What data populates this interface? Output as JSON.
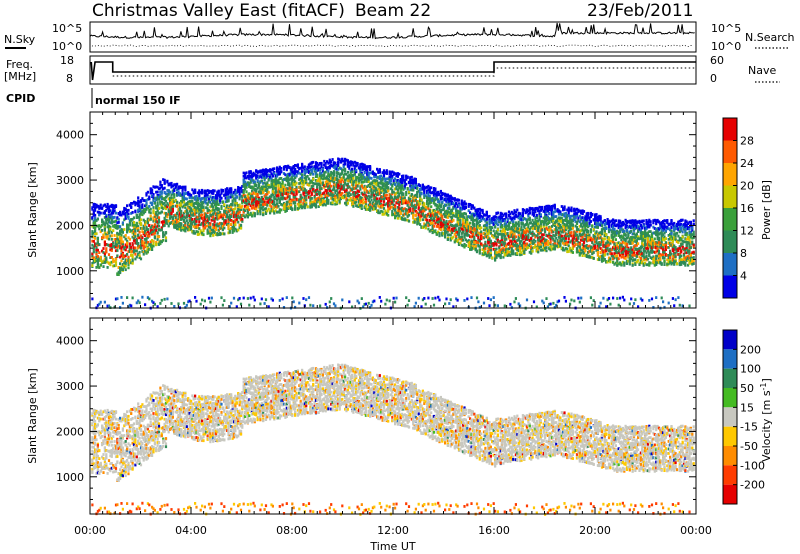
{
  "header": {
    "title": "Christmas Valley East (fitACF)",
    "beam": "Beam 22",
    "date": "23/Feb/2011"
  },
  "strip_labels": {
    "nsky": "N.Sky",
    "nsearch": "N.Search",
    "freq": "Freq.",
    "freq_unit": "[MHz]",
    "nave": "Nave",
    "cpid": "CPID",
    "cpid_value": "normal 150 IF"
  },
  "strip_ticks": {
    "nsky_left": [
      "10^5",
      "10^0"
    ],
    "nsky_right": [
      "10^5",
      "10^0"
    ],
    "freq_left": [
      "18",
      "8"
    ],
    "nave_right": [
      "60",
      "0"
    ]
  },
  "chart_data": [
    {
      "type": "heatmap",
      "name": "power",
      "ylabel": "Slant Range [km]",
      "yticks": [
        1000,
        2000,
        3000,
        4000
      ],
      "ylim": [
        180,
        4500
      ],
      "xlim": [
        0,
        24
      ],
      "colorbar": {
        "label": "Power [dB]",
        "ticks": [
          "4",
          "8",
          "12",
          "16",
          "20",
          "24",
          "28"
        ],
        "colors": [
          "#0000e6",
          "#1e6fc4",
          "#2e8b57",
          "#3aa03a",
          "#c8c800",
          "#ffa500",
          "#ff5a00",
          "#e60000"
        ]
      }
    },
    {
      "type": "heatmap",
      "name": "velocity",
      "ylabel": "Slant Range [km]",
      "yticks": [
        1000,
        2000,
        3000,
        4000
      ],
      "ylim": [
        180,
        4500
      ],
      "xlim": [
        0,
        24
      ],
      "xlabel": "Time UT",
      "xticks": [
        "00:00",
        "04:00",
        "08:00",
        "12:00",
        "16:00",
        "20:00",
        "00:00"
      ],
      "colorbar": {
        "label": "Velocity",
        "label_unit": "[m s",
        "label_exp": "-1",
        "label_close": "]",
        "ticks": [
          "200",
          "100",
          "50",
          "15",
          "-15",
          "-50",
          "-100",
          "-200"
        ],
        "colors": [
          "#0000c8",
          "#1e6fc4",
          "#2e8b57",
          "#44bb22",
          "#c8c8c0",
          "#ffc800",
          "#ff8c00",
          "#ff3c00",
          "#e60000"
        ]
      }
    }
  ]
}
